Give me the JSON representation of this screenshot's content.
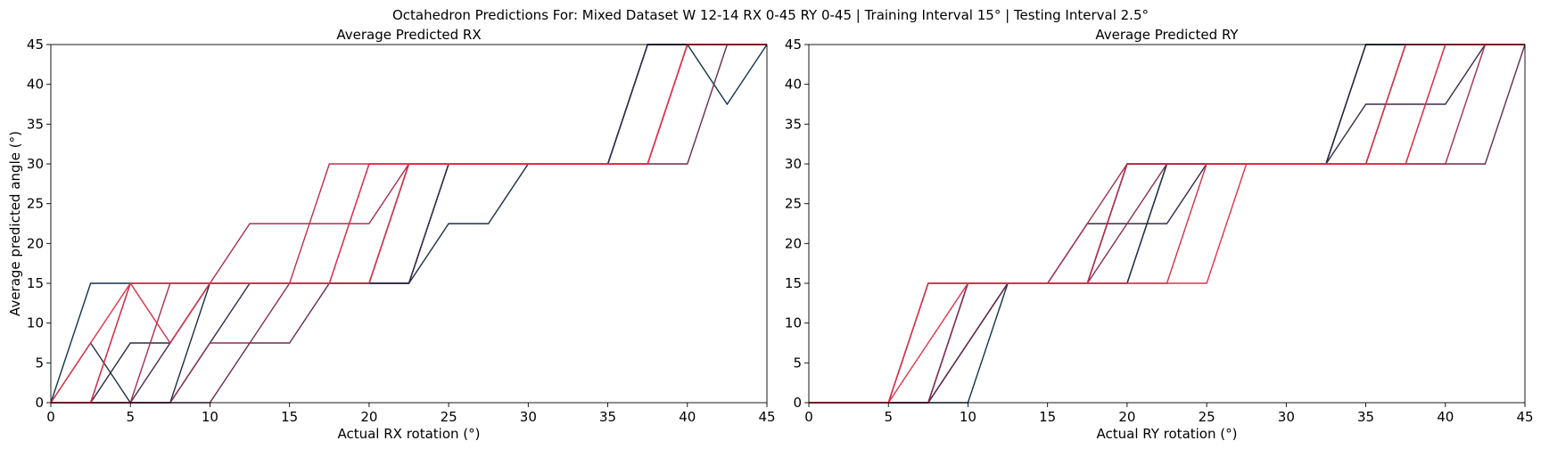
{
  "suptitle": "Octahedron Predictions For: Mixed Dataset W 12-14 RX 0-45 RY 0-45 | Training Interval 15° | Testing Interval 2.5°",
  "chart_data": [
    {
      "type": "line",
      "title": "Average Predicted RX",
      "xlabel": "Actual RX rotation (°)",
      "ylabel": "Average predicted angle (°)",
      "xlim": [
        0,
        45
      ],
      "ylim": [
        0,
        45
      ],
      "xticks": [
        "0",
        "5",
        "10",
        "15",
        "20",
        "25",
        "30",
        "35",
        "40",
        "45"
      ],
      "yticks": [
        "0",
        "5",
        "10",
        "15",
        "20",
        "25",
        "30",
        "35",
        "40",
        "45"
      ],
      "grid": false,
      "x": [
        0,
        2.5,
        5,
        7.5,
        10,
        12.5,
        15,
        17.5,
        20,
        22.5,
        25,
        27.5,
        30,
        32.5,
        35,
        37.5,
        40,
        42.5,
        45
      ],
      "series": [
        {
          "color": "#12344f",
          "values": [
            0,
            15,
            15,
            15,
            15,
            15,
            15,
            15,
            15,
            15,
            30,
            30,
            30,
            30,
            30,
            45,
            45,
            37.5,
            45
          ]
        },
        {
          "color": "#1d3048",
          "values": [
            0,
            7.5,
            0,
            0,
            15,
            15,
            15,
            15,
            15,
            15,
            22.5,
            22.5,
            30,
            30,
            30,
            45,
            45,
            45,
            45
          ]
        },
        {
          "color": "#2a2a45",
          "values": [
            0,
            0,
            7.5,
            7.5,
            15,
            15,
            15,
            15,
            15,
            15,
            30,
            30,
            30,
            30,
            30,
            45,
            45,
            45,
            45
          ]
        },
        {
          "color": "#3a2a4a",
          "values": [
            0,
            0,
            0,
            0,
            7.5,
            15,
            15,
            15,
            15,
            15,
            30,
            30,
            30,
            30,
            30,
            45,
            45,
            45,
            45
          ]
        },
        {
          "color": "#4e2a4c",
          "values": [
            0,
            0,
            0,
            7.5,
            15,
            15,
            15,
            15,
            15,
            30,
            30,
            30,
            30,
            30,
            30,
            30,
            45,
            45,
            45
          ]
        },
        {
          "color": "#6a2c50",
          "values": [
            0,
            0,
            0,
            0,
            0,
            7.5,
            7.5,
            15,
            15,
            30,
            30,
            30,
            30,
            30,
            30,
            30,
            30,
            45,
            45
          ]
        },
        {
          "color": "#8a2f55",
          "values": [
            0,
            0,
            0,
            0,
            7.5,
            7.5,
            15,
            15,
            30,
            30,
            30,
            30,
            30,
            30,
            30,
            30,
            45,
            45,
            45
          ]
        },
        {
          "color": "#a8304f",
          "values": [
            0,
            0,
            0,
            15,
            15,
            22.5,
            22.5,
            22.5,
            22.5,
            30,
            30,
            30,
            30,
            30,
            30,
            30,
            45,
            45,
            45
          ]
        },
        {
          "color": "#c0304b",
          "values": [
            0,
            0,
            15,
            15,
            15,
            15,
            15,
            30,
            30,
            30,
            30,
            30,
            30,
            30,
            30,
            30,
            45,
            45,
            45
          ]
        },
        {
          "color": "#d83048",
          "values": [
            0,
            0,
            15,
            7.5,
            15,
            15,
            15,
            15,
            15,
            30,
            30,
            30,
            30,
            30,
            30,
            30,
            45,
            45,
            45
          ]
        },
        {
          "color": "#e8304a",
          "values": [
            0,
            7.5,
            15,
            15,
            15,
            15,
            15,
            15,
            30,
            30,
            30,
            30,
            30,
            30,
            30,
            30,
            45,
            45,
            45
          ]
        }
      ]
    },
    {
      "type": "line",
      "title": "Average Predicted RY",
      "xlabel": "Actual RY rotation (°)",
      "ylabel": "",
      "xlim": [
        0,
        45
      ],
      "ylim": [
        0,
        45
      ],
      "xticks": [
        "0",
        "5",
        "10",
        "15",
        "20",
        "25",
        "30",
        "35",
        "40",
        "45"
      ],
      "yticks": [
        "0",
        "5",
        "10",
        "15",
        "20",
        "25",
        "30",
        "35",
        "40",
        "45"
      ],
      "grid": false,
      "x": [
        0,
        2.5,
        5,
        7.5,
        10,
        12.5,
        15,
        17.5,
        20,
        22.5,
        25,
        27.5,
        30,
        32.5,
        35,
        37.5,
        40,
        42.5,
        45
      ],
      "series": [
        {
          "color": "#12344f",
          "values": [
            0,
            0,
            0,
            0,
            0,
            15,
            15,
            15,
            15,
            30,
            30,
            30,
            30,
            30,
            45,
            45,
            45,
            45,
            45
          ]
        },
        {
          "color": "#1d3048",
          "values": [
            0,
            0,
            0,
            0,
            15,
            15,
            15,
            15,
            15,
            30,
            30,
            30,
            30,
            30,
            45,
            45,
            45,
            45,
            45
          ]
        },
        {
          "color": "#2a2a45",
          "values": [
            0,
            0,
            0,
            0,
            7.5,
            15,
            15,
            15,
            30,
            30,
            30,
            30,
            30,
            30,
            45,
            45,
            45,
            45,
            45
          ]
        },
        {
          "color": "#3a2a4a",
          "values": [
            0,
            0,
            0,
            0,
            7.5,
            15,
            15,
            22.5,
            22.5,
            22.5,
            30,
            30,
            30,
            30,
            37.5,
            37.5,
            37.5,
            45,
            45
          ]
        },
        {
          "color": "#4e2a4c",
          "values": [
            0,
            0,
            0,
            0,
            15,
            15,
            15,
            15,
            30,
            30,
            30,
            30,
            30,
            30,
            30,
            45,
            45,
            45,
            45
          ]
        },
        {
          "color": "#6a2c50",
          "values": [
            0,
            0,
            0,
            0,
            7.5,
            15,
            15,
            15,
            30,
            30,
            30,
            30,
            30,
            30,
            30,
            30,
            30,
            30,
            45
          ]
        },
        {
          "color": "#8a2f55",
          "values": [
            0,
            0,
            0,
            0,
            15,
            15,
            15,
            15,
            22.5,
            30,
            30,
            30,
            30,
            30,
            30,
            30,
            45,
            45,
            45
          ]
        },
        {
          "color": "#a8304f",
          "values": [
            0,
            0,
            0,
            15,
            15,
            15,
            15,
            22.5,
            30,
            30,
            30,
            30,
            30,
            30,
            30,
            30,
            30,
            45,
            45
          ]
        },
        {
          "color": "#c0304b",
          "values": [
            0,
            0,
            0,
            15,
            15,
            15,
            15,
            15,
            30,
            30,
            30,
            30,
            30,
            30,
            30,
            45,
            45,
            45,
            45
          ]
        },
        {
          "color": "#d83048",
          "values": [
            0,
            0,
            0,
            15,
            15,
            15,
            15,
            15,
            15,
            15,
            30,
            30,
            30,
            30,
            30,
            45,
            45,
            45,
            45
          ]
        },
        {
          "color": "#e8304a",
          "values": [
            0,
            0,
            0,
            7.5,
            15,
            15,
            15,
            15,
            15,
            15,
            15,
            30,
            30,
            30,
            30,
            30,
            45,
            45,
            45
          ]
        }
      ]
    }
  ]
}
